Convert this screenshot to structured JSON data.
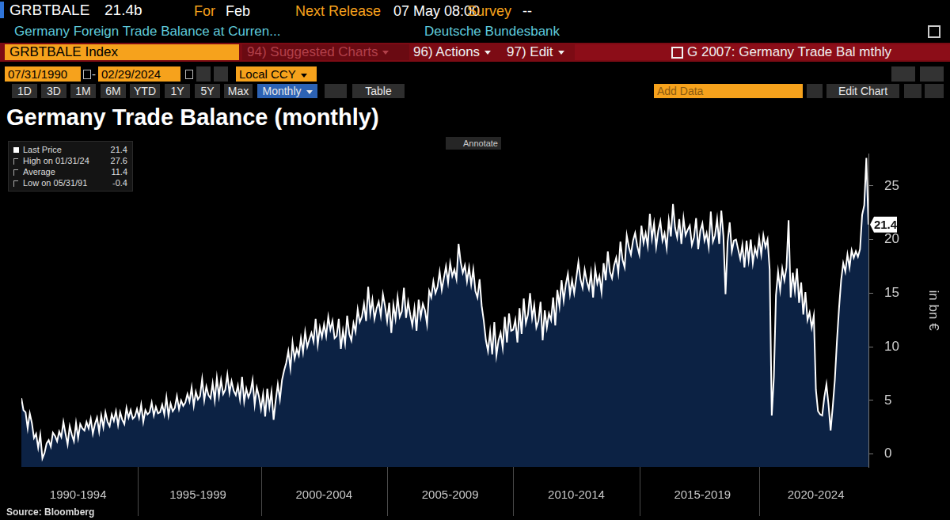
{
  "terminal": {
    "ticker": "GRBTBALE",
    "last": "21.4b",
    "for": {
      "label": "For",
      "value": "Feb"
    },
    "next_release": {
      "label": "Next Release",
      "value": "07 May 08:00"
    },
    "survey": {
      "label": "Survey",
      "value": "--"
    },
    "description": "Germany Foreign Trade Balance at Curren...",
    "source_name": "Deutsche Bundesbank",
    "security": "GRBTBALE Index",
    "menu": [
      "94) Suggested Charts",
      "96) Actions",
      "97) Edit"
    ],
    "chart_name": "G 2007: Germany Trade Bal mthly",
    "start_date": "07/31/1990",
    "date_separator": "-",
    "end_date": "02/29/2024",
    "currency": "Local CCY",
    "periods": [
      "1D",
      "3D",
      "1M",
      "6M",
      "YTD",
      "1Y",
      "5Y",
      "Max"
    ],
    "frequency": "Monthly",
    "table_button": "Table",
    "add_data": "Add Data",
    "edit_chart": "Edit Chart",
    "annotate": "Annotate",
    "stats": [
      {
        "label": "Last Price",
        "value": 21.4
      },
      {
        "label": "High on 01/31/24",
        "value": 27.6
      },
      {
        "label": "Average",
        "value": 11.4
      },
      {
        "label": "Low on 05/31/91",
        "value": -0.4
      }
    ],
    "source": "Source: Bloomberg"
  },
  "chart_data": {
    "type": "line",
    "title": "Germany Trade Balance (monthly)",
    "y_label": "in bn €",
    "color": "#ffffff",
    "grid": false,
    "legend": false,
    "ylim": [
      -1.2,
      28
    ],
    "yticks": [
      0,
      5,
      10,
      15,
      20,
      25
    ],
    "annotations": [
      {
        "text": "21.4",
        "y": 21.4
      }
    ],
    "categories": [
      null,
      null,
      null,
      null,
      null,
      null,
      null,
      null,
      null,
      null,
      null,
      null,
      null,
      null,
      null,
      null,
      null,
      null,
      null,
      null,
      null,
      null,
      null,
      null,
      null,
      null,
      null,
      "1990-1994",
      null,
      null,
      null,
      null,
      null,
      null,
      null,
      null,
      null,
      null,
      null,
      null,
      null,
      null,
      null,
      null,
      null,
      null,
      null,
      null,
      null,
      null,
      null,
      null,
      null,
      null,
      null,
      null,
      null,
      null,
      null,
      null,
      null,
      null,
      null,
      null,
      null,
      null,
      null,
      null,
      null,
      null,
      null,
      null,
      null,
      null,
      null,
      null,
      null,
      null,
      null,
      null,
      null,
      null,
      null,
      null,
      "1995-1999",
      null,
      null,
      null,
      null,
      null,
      null,
      null,
      null,
      null,
      null,
      null,
      null,
      null,
      null,
      null,
      null,
      null,
      null,
      null,
      null,
      null,
      null,
      null,
      null,
      null,
      null,
      null,
      null,
      null,
      null,
      null,
      null,
      null,
      null,
      null,
      null,
      null,
      null,
      null,
      null,
      null,
      null,
      null,
      null,
      null,
      null,
      null,
      null,
      null,
      null,
      null,
      null,
      null,
      null,
      null,
      null,
      null,
      null,
      null,
      "2000-2004",
      null,
      null,
      null,
      null,
      null,
      null,
      null,
      null,
      null,
      null,
      null,
      null,
      null,
      null,
      null,
      null,
      null,
      null,
      null,
      null,
      null,
      null,
      null,
      null,
      null,
      null,
      null,
      null,
      null,
      null,
      null,
      null,
      null,
      null,
      null,
      null,
      null,
      null,
      null,
      null,
      null,
      null,
      null,
      null,
      null,
      null,
      null,
      null,
      null,
      null,
      null,
      null,
      null,
      null,
      null,
      null,
      null,
      null,
      null,
      "2005-2009",
      null,
      null,
      null,
      null,
      null,
      null,
      null,
      null,
      null,
      null,
      null,
      null,
      null,
      null,
      null,
      null,
      null,
      null,
      null,
      null,
      null,
      null,
      null,
      null,
      null,
      null,
      null,
      null,
      null,
      null,
      null,
      null,
      null,
      null,
      null,
      null,
      null,
      null,
      null,
      null,
      null,
      null,
      null,
      null,
      null,
      null,
      null,
      null,
      null,
      null,
      null,
      null,
      null,
      null,
      null,
      null,
      null,
      null,
      null,
      "2010-2014",
      null,
      null,
      null,
      null,
      null,
      null,
      null,
      null,
      null,
      null,
      null,
      null,
      null,
      null,
      null,
      null,
      null,
      null,
      null,
      null,
      null,
      null,
      null,
      null,
      null,
      null,
      null,
      null,
      null,
      null,
      null,
      null,
      null,
      null,
      null,
      null,
      null,
      null,
      null,
      null,
      null,
      null,
      null,
      null,
      null,
      null,
      null,
      null,
      null,
      null,
      null,
      null,
      null,
      null,
      null,
      null,
      null,
      null,
      null,
      "2015-2019",
      null,
      null,
      null,
      null,
      null,
      null,
      null,
      null,
      null,
      null,
      null,
      null,
      null,
      null,
      null,
      null,
      null,
      null,
      null,
      null,
      null,
      null,
      null,
      null,
      null,
      null,
      null,
      null,
      null,
      null,
      null,
      null,
      null,
      null,
      null,
      null,
      null,
      null,
      null,
      null,
      null,
      null,
      null,
      null,
      null,
      null,
      null,
      null,
      null,
      null,
      null,
      null,
      null,
      "2020-2024",
      null,
      null,
      null,
      null,
      null,
      null,
      null,
      null,
      null,
      null,
      null,
      null,
      null,
      null,
      null,
      null,
      null,
      null,
      null,
      null,
      null,
      null,
      null,
      null,
      null
    ],
    "values": [
      5.2,
      4.1,
      3.9,
      2.4,
      3.8,
      2.9,
      1.5,
      1.9,
      0.6,
      1.8,
      -0.4,
      0.1,
      1.0,
      1.3,
      0.7,
      2.0,
      1.7,
      1.2,
      2.1,
      1.6,
      3.0,
      1.9,
      0.9,
      2.6,
      1.8,
      1.2,
      2.9,
      1.5,
      2.8,
      2.4,
      2.2,
      3.0,
      2.4,
      3.3,
      1.9,
      2.8,
      3.4,
      2.1,
      3.6,
      2.5,
      3.9,
      3.0,
      2.6,
      3.7,
      3.1,
      4.0,
      2.7,
      3.9,
      3.2,
      2.8,
      4.3,
      3.4,
      4.1,
      3.3,
      3.5,
      4.2,
      3.4,
      4.6,
      3.0,
      4.1,
      3.7,
      3.9,
      4.8,
      3.6,
      4.4,
      3.8,
      3.9,
      4.6,
      3.7,
      5.3,
      3.6,
      4.7,
      4.0,
      4.3,
      5.4,
      4.2,
      5.0,
      4.5,
      4.8,
      5.6,
      4.9,
      6.2,
      4.5,
      5.8,
      5.1,
      5.4,
      7.0,
      5.0,
      6.3,
      5.5,
      5.2,
      6.6,
      5.0,
      7.1,
      5.4,
      6.9,
      5.6,
      6.0,
      7.4,
      5.7,
      6.8,
      5.9,
      5.5,
      6.4,
      5.1,
      7.2,
      4.9,
      6.1,
      5.3,
      5.8,
      6.9,
      4.6,
      6.2,
      5.4,
      4.2,
      5.6,
      3.5,
      6.1,
      4.4,
      5.8,
      3.2,
      5.0,
      6.5,
      5.1,
      6.9,
      7.8,
      8.5,
      9.6,
      8.0,
      10.4,
      8.9,
      9.8,
      9.2,
      10.8,
      9.5,
      11.4,
      10.0,
      10.7,
      11.3,
      10.5,
      12.6,
      10.2,
      11.8,
      10.9,
      12.1,
      11.0,
      12.8,
      11.6,
      12.4,
      10.8,
      11.0,
      12.6,
      9.8,
      11.5,
      10.3,
      12.9,
      11.2,
      10.6,
      12.2,
      11.4,
      13.5,
      12.3,
      12.8,
      14.0,
      12.4,
      15.6,
      13.1,
      14.4,
      12.6,
      13.6,
      14.2,
      12.9,
      14.9,
      13.8,
      12.4,
      14.1,
      11.3,
      13.9,
      12.6,
      14.6,
      12.8,
      13.3,
      15.5,
      12.7,
      14.2,
      13.0,
      12.0,
      13.6,
      11.5,
      14.4,
      12.8,
      14.0,
      13.4,
      12.1,
      15.2,
      14.6,
      16.1,
      15.0,
      15.6,
      17.0,
      15.3,
      16.4,
      17.5,
      16.0,
      17.8,
      16.6,
      17.2,
      16.3,
      19.6,
      17.9,
      16.9,
      17.6,
      16.1,
      17.4,
      15.8,
      17.2,
      15.2,
      14.6,
      16.3,
      13.8,
      12.4,
      10.6,
      9.6,
      11.4,
      9.3,
      12.3,
      9.2,
      10.6,
      11.3,
      9.9,
      12.8,
      10.4,
      13.1,
      11.5,
      11.6,
      12.5,
      10.4,
      13.6,
      11.2,
      14.5,
      12.2,
      13.0,
      15.0,
      12.7,
      13.9,
      11.8,
      12.4,
      14.2,
      10.6,
      13.4,
      11.8,
      13.1,
      12.5,
      14.6,
      12.0,
      15.3,
      13.8,
      16.2,
      14.3,
      15.8,
      16.8,
      14.9,
      16.2,
      15.0,
      16.4,
      17.9,
      16.3,
      15.5,
      17.2,
      16.1,
      15.4,
      16.9,
      14.6,
      17.3,
      15.9,
      16.6,
      15.1,
      17.8,
      16.2,
      18.9,
      17.0,
      16.4,
      17.6,
      18.3,
      16.9,
      19.8,
      18.1,
      17.4,
      20.4,
      19.3,
      18.6,
      19.9,
      20.6,
      19.4,
      18.6,
      21.3,
      19.7,
      20.6,
      19.4,
      22.4,
      20.1,
      21.5,
      19.3,
      20.8,
      21.7,
      19.9,
      20.6,
      19.2,
      21.8,
      20.3,
      23.3,
      21.1,
      20.2,
      21.9,
      19.6,
      22.0,
      20.4,
      20.9,
      21.3,
      19.5,
      20.2,
      22.0,
      19.1,
      20.8,
      21.5,
      19.9,
      20.6,
      19.3,
      22.6,
      19.8,
      20.4,
      21.9,
      19.6,
      22.7,
      20.3,
      14.9,
      19.8,
      21.6,
      18.9,
      19.9,
      20.0,
      19.1,
      18.2,
      19.5,
      17.4,
      19.9,
      18.1,
      20.0,
      17.8,
      19.2,
      18.5,
      20.1,
      18.6,
      20.4,
      19.3,
      20.0,
      17.2,
      3.6,
      7.2,
      14.8,
      17.0,
      15.3,
      17.3,
      16.2,
      17.4,
      21.8,
      14.6,
      16.9,
      15.2,
      17.3,
      14.1,
      16.0,
      13.0,
      15.1,
      12.5,
      13.2,
      11.8,
      12.9,
      6.0,
      4.0,
      3.7,
      3.6,
      5.3,
      6.5,
      4.6,
      2.2,
      4.4,
      6.9,
      10.5,
      13.6,
      16.2,
      17.8,
      17.0,
      18.6,
      17.4,
      19.0,
      18.3,
      18.9,
      18.4,
      19.1,
      22.3,
      23.2,
      27.6,
      21.4
    ]
  }
}
